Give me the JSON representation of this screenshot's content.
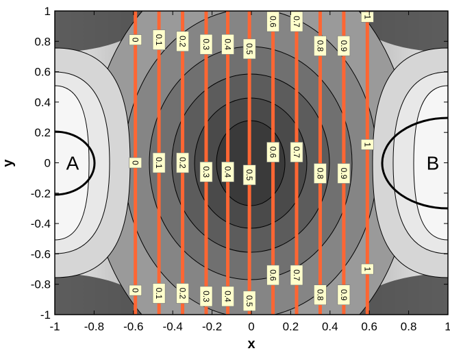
{
  "chart_data": {
    "type": "contour",
    "title": "",
    "xlabel": "x",
    "ylabel": "y",
    "xlim": [
      -1,
      1
    ],
    "ylim": [
      -1,
      1
    ],
    "xticks": [
      "-1",
      "-0.8",
      "-0.6",
      "-0.4",
      "-0.2",
      "0",
      "0.2",
      "0.4",
      "0.6",
      "0.8",
      "1"
    ],
    "yticks": [
      "-1",
      "-0.8",
      "-0.6",
      "-0.4",
      "-0.2",
      "0",
      "0.2",
      "0.4",
      "0.6",
      "0.8",
      "1"
    ],
    "regions": [
      {
        "label": "A",
        "center": [
          -1,
          0
        ]
      },
      {
        "label": "B",
        "center": [
          1,
          0
        ]
      }
    ],
    "isolines": [
      {
        "label": "0",
        "x": -0.59,
        "label_y": [
          0.81,
          0.0,
          -0.84
        ]
      },
      {
        "label": "0.1",
        "x": -0.47,
        "label_y": [
          0.81,
          0.0,
          -0.86
        ]
      },
      {
        "label": "0.2",
        "x": -0.35,
        "label_y": [
          0.8,
          0.0,
          -0.86
        ]
      },
      {
        "label": "0.3",
        "x": -0.23,
        "label_y": [
          0.78,
          -0.06,
          -0.88
        ]
      },
      {
        "label": "0.4",
        "x": -0.12,
        "label_y": [
          0.78,
          -0.06,
          -0.88
        ]
      },
      {
        "label": "0.5",
        "x": -0.01,
        "label_y": [
          0.75,
          -0.08,
          -0.91
        ]
      },
      {
        "label": "0.6",
        "x": 0.11,
        "label_y": [
          0.93,
          0.07,
          -0.74
        ]
      },
      {
        "label": "0.7",
        "x": 0.23,
        "label_y": [
          0.93,
          0.07,
          -0.74
        ]
      },
      {
        "label": "0.8",
        "x": 0.35,
        "label_y": [
          0.77,
          -0.07,
          -0.87
        ]
      },
      {
        "label": "0.9",
        "x": 0.47,
        "label_y": [
          0.77,
          -0.07,
          -0.87
        ]
      },
      {
        "label": "1",
        "x": 0.59,
        "label_y": [
          0.96,
          0.12,
          -0.7
        ]
      }
    ],
    "background": "grayscale filled contour of potential, darkest at center, lightest near x=±1",
    "isoline_color": "#ff6633",
    "label_box_color": "#ffffcc"
  }
}
